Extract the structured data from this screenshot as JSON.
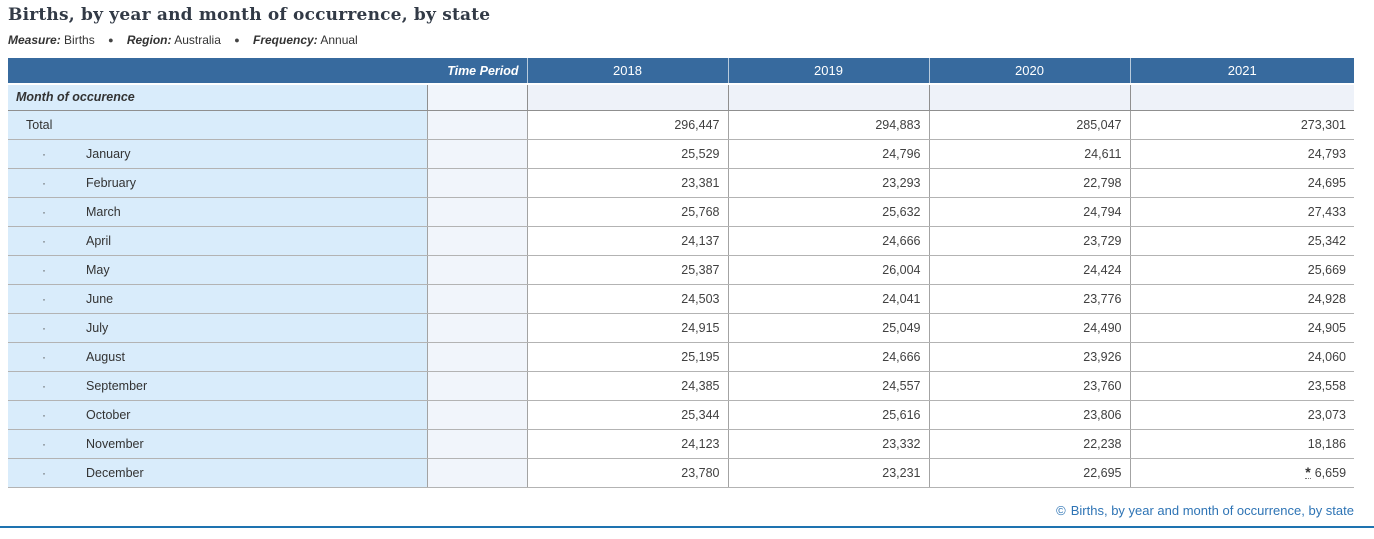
{
  "page": {
    "title": "Births, by year and month of occurrence, by state",
    "separator": "●",
    "filters": [
      {
        "label": "Measure:",
        "value": "Births"
      },
      {
        "label": "Region:",
        "value": "Australia"
      },
      {
        "label": "Frequency:",
        "value": "Annual"
      }
    ]
  },
  "colors": {
    "header_bg": "#376a9e",
    "label_column_bg": "#d9ecfb",
    "time_period_column_bg": "#f1f5fb",
    "group_row_bg": "#eef2f9",
    "link": "#2e74b5",
    "divider": "#1e73b0"
  },
  "table": {
    "header": {
      "time_period": "Time Period",
      "years": [
        "2018",
        "2019",
        "2020",
        "2021"
      ]
    },
    "group_label": "Month of occurence",
    "rows": [
      {
        "label": "Total",
        "indent": false,
        "values": [
          "296,447",
          "294,883",
          "285,047",
          "273,301"
        ]
      },
      {
        "label": "January",
        "indent": true,
        "values": [
          "25,529",
          "24,796",
          "24,611",
          "24,793"
        ]
      },
      {
        "label": "February",
        "indent": true,
        "values": [
          "23,381",
          "23,293",
          "22,798",
          "24,695"
        ]
      },
      {
        "label": "March",
        "indent": true,
        "values": [
          "25,768",
          "25,632",
          "24,794",
          "27,433"
        ]
      },
      {
        "label": "April",
        "indent": true,
        "values": [
          "24,137",
          "24,666",
          "23,729",
          "25,342"
        ]
      },
      {
        "label": "May",
        "indent": true,
        "values": [
          "25,387",
          "26,004",
          "24,424",
          "25,669"
        ]
      },
      {
        "label": "June",
        "indent": true,
        "values": [
          "24,503",
          "24,041",
          "23,776",
          "24,928"
        ]
      },
      {
        "label": "July",
        "indent": true,
        "values": [
          "24,915",
          "25,049",
          "24,490",
          "24,905"
        ]
      },
      {
        "label": "August",
        "indent": true,
        "values": [
          "25,195",
          "24,666",
          "23,926",
          "24,060"
        ]
      },
      {
        "label": "September",
        "indent": true,
        "values": [
          "24,385",
          "24,557",
          "23,760",
          "23,558"
        ]
      },
      {
        "label": "October",
        "indent": true,
        "values": [
          "25,344",
          "25,616",
          "23,806",
          "23,073"
        ]
      },
      {
        "label": "November",
        "indent": true,
        "values": [
          "24,123",
          "23,332",
          "22,238",
          "18,186"
        ]
      },
      {
        "label": "December",
        "indent": true,
        "values": [
          "23,780",
          "23,231",
          "22,695",
          "6,659"
        ],
        "flag": {
          "col": 3,
          "symbol": "*"
        }
      }
    ]
  },
  "footer": {
    "copyright_symbol": "©",
    "link_label": "Births, by year and month of occurrence, by state"
  }
}
